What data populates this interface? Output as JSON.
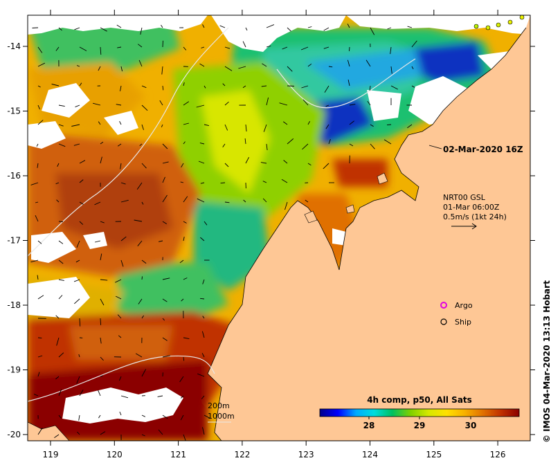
{
  "map": {
    "snapshot_title": "02-Mar-2020 16Z",
    "x_ticks": [
      "119",
      "120",
      "121",
      "122",
      "123",
      "124",
      "125",
      "126"
    ],
    "y_ticks": [
      "-14",
      "-15",
      "-16",
      "-17",
      "-18",
      "-19",
      "-20"
    ],
    "current_legend": {
      "line1": "NRT00 GSL",
      "line2": "01-Mar 06:00Z",
      "line3": "0.5m/s (1kt 24h)"
    },
    "markers": {
      "argo_label": "Argo",
      "ship_label": "Ship",
      "argo_color": "#e000e0",
      "ship_color": "#000000"
    },
    "bathymetry": {
      "contour_200": "200m",
      "contour_1000": "1000m"
    },
    "colorbar": {
      "title": "4h comp, p50, All Sats",
      "ticks": [
        "28",
        "29",
        "30"
      ],
      "colors": [
        "#00008b",
        "#0000ff",
        "#00aaff",
        "#00dddd",
        "#00c060",
        "#7ed000",
        "#d6e800",
        "#ffe000",
        "#f8b000",
        "#e07000",
        "#c03000",
        "#8b0000"
      ]
    },
    "land_color": "#fec795",
    "credit": "© IMOS 04-Mar-2020 13:13 Hobart"
  }
}
